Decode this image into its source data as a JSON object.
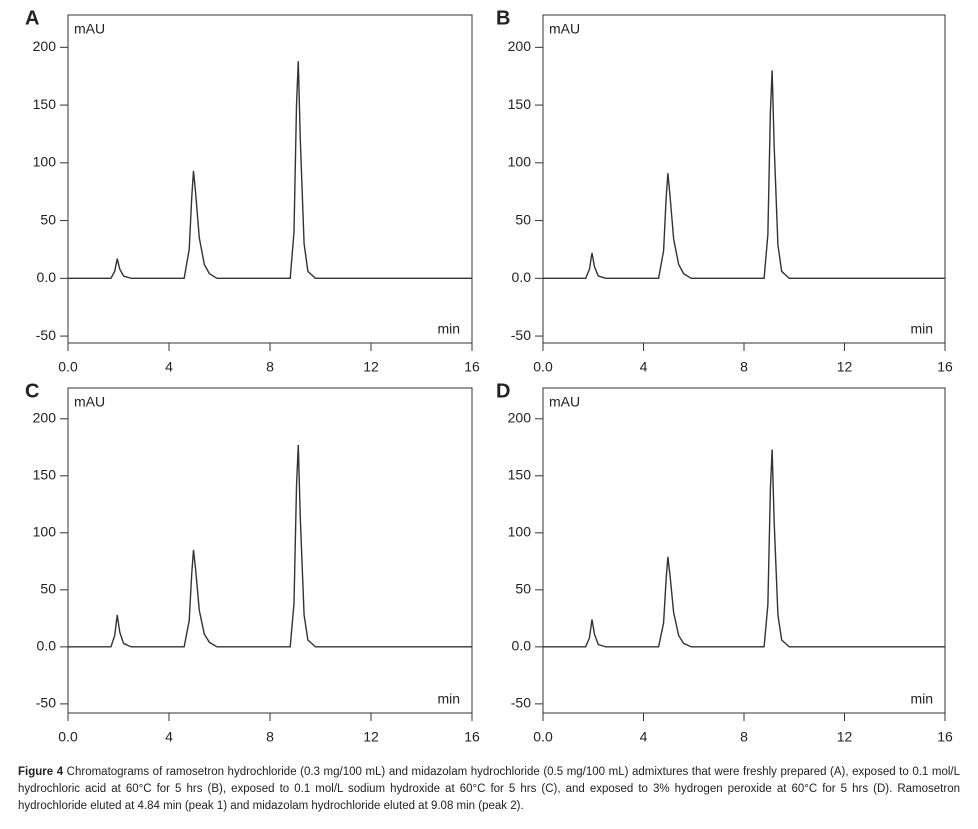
{
  "chart_data": [
    {
      "type": "line",
      "panel": "A",
      "ylabel": "mAU",
      "xlabel": "min",
      "x": [
        0,
        1.7,
        1.85,
        1.95,
        2.05,
        2.2,
        2.5,
        4.6,
        4.8,
        4.9,
        4.97,
        5.05,
        5.2,
        5.4,
        5.6,
        5.9,
        8.8,
        8.95,
        9.05,
        9.12,
        9.2,
        9.35,
        9.5,
        9.8,
        16
      ],
      "series": [
        {
          "color": "#333333",
          "values": [
            0,
            0,
            6,
            17,
            8,
            2,
            0,
            0,
            25,
            70,
            93,
            75,
            35,
            12,
            4,
            0,
            0,
            40,
            150,
            188,
            120,
            30,
            6,
            0,
            0
          ]
        }
      ],
      "xlim": [
        0,
        16
      ],
      "xticks": [
        {
          "value": 0,
          "label": "0.0"
        },
        4,
        8,
        12,
        16
      ],
      "ylim": [
        -56,
        228
      ],
      "yticks": [
        -50,
        {
          "value": 0,
          "label": "0.0"
        },
        50,
        100,
        150,
        200
      ]
    },
    {
      "type": "line",
      "panel": "B",
      "ylabel": "mAU",
      "xlabel": "min",
      "x": [
        0,
        1.7,
        1.85,
        1.95,
        2.05,
        2.2,
        2.5,
        4.6,
        4.8,
        4.9,
        4.97,
        5.05,
        5.2,
        5.4,
        5.6,
        5.9,
        8.8,
        8.95,
        9.05,
        9.12,
        9.2,
        9.35,
        9.5,
        9.8,
        16
      ],
      "series": [
        {
          "color": "#333333",
          "values": [
            0,
            0,
            8,
            22,
            10,
            2,
            0,
            0,
            24,
            69,
            91,
            73,
            34,
            12,
            4,
            0,
            0,
            38,
            144,
            180,
            115,
            29,
            6,
            0,
            0
          ]
        }
      ],
      "xlim": [
        0,
        16
      ],
      "xticks": [
        {
          "value": 0,
          "label": "0.0"
        },
        4,
        8,
        12,
        16
      ],
      "ylim": [
        -56,
        228
      ],
      "yticks": [
        -50,
        {
          "value": 0,
          "label": "0.0"
        },
        50,
        100,
        150,
        200
      ]
    },
    {
      "type": "line",
      "panel": "C",
      "ylabel": "mAU",
      "xlabel": "min",
      "x": [
        0,
        1.7,
        1.85,
        1.95,
        2.05,
        2.2,
        2.5,
        4.6,
        4.8,
        4.9,
        4.97,
        5.05,
        5.2,
        5.4,
        5.6,
        5.9,
        8.8,
        8.95,
        9.05,
        9.12,
        9.2,
        9.35,
        9.5,
        9.8,
        16
      ],
      "series": [
        {
          "color": "#333333",
          "values": [
            0,
            0,
            10,
            28,
            13,
            3,
            0,
            0,
            23,
            64,
            85,
            69,
            32,
            11,
            4,
            0,
            0,
            38,
            141,
            177,
            113,
            28,
            6,
            0,
            0
          ]
        }
      ],
      "xlim": [
        0,
        16
      ],
      "xticks": [
        {
          "value": 0,
          "label": "0.0"
        },
        4,
        8,
        12,
        16
      ],
      "ylim": [
        -58,
        227
      ],
      "yticks": [
        -50,
        {
          "value": 0,
          "label": "0.0"
        },
        50,
        100,
        150,
        200
      ]
    },
    {
      "type": "line",
      "panel": "D",
      "ylabel": "mAU",
      "xlabel": "min",
      "x": [
        0,
        1.7,
        1.85,
        1.95,
        2.05,
        2.2,
        2.5,
        4.6,
        4.8,
        4.9,
        4.97,
        5.05,
        5.2,
        5.4,
        5.6,
        5.9,
        8.8,
        8.95,
        9.05,
        9.12,
        9.2,
        9.35,
        9.5,
        9.8,
        16
      ],
      "series": [
        {
          "color": "#333333",
          "values": [
            0,
            0,
            8,
            24,
            11,
            2,
            0,
            0,
            21,
            59,
            79,
            64,
            30,
            10,
            3,
            0,
            0,
            37,
            138,
            173,
            110,
            28,
            6,
            0,
            0
          ]
        }
      ],
      "xlim": [
        0,
        16
      ],
      "xticks": [
        {
          "value": 0,
          "label": "0.0"
        },
        4,
        8,
        12,
        16
      ],
      "ylim": [
        -58,
        227
      ],
      "yticks": [
        -50,
        {
          "value": 0,
          "label": "0.0"
        },
        50,
        100,
        150,
        200
      ]
    }
  ],
  "caption": {
    "label": "Figure 4",
    "text": "Chromatograms of ramosetron hydrochloride (0.3 mg/100 mL) and midazolam hydrochloride (0.5 mg/100 mL) admixtures that were freshly prepared (A), exposed to 0.1 mol/L hydrochloric acid at 60°C for 5 hrs (B), exposed to 0.1 mol/L sodium hydroxide at 60°C for 5 hrs (C), and exposed to 3% hydrogen peroxide at 60°C for 5 hrs (D). Ramosetron hydrochloride eluted at 4.84 min (peak 1) and midazolam hydrochloride eluted at 9.08 min (peak 2)."
  }
}
